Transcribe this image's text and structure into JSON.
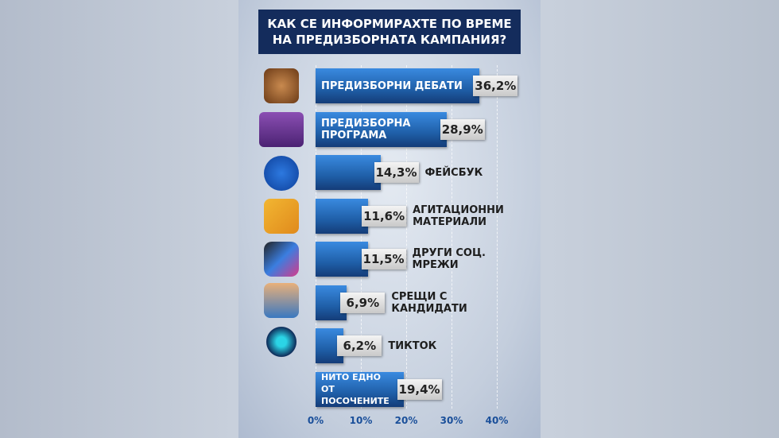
{
  "chart_data": {
    "type": "bar",
    "orientation": "horizontal",
    "title": "КАК СЕ ИНФОРМИРАХТЕ ПО ВРЕМЕ НА ПРЕДИЗБОРНАТА КАМПАНИЯ?",
    "categories": [
      "ПРЕДИЗБОРНИ ДЕБАТИ",
      "ПРЕДИЗБОРНА ПРОГРАМА",
      "ФЕЙСБУК",
      "АГИТАЦИОННИ МАТЕРИАЛИ",
      "ДРУГИ СОЦ. МРЕЖИ",
      "СРЕЩИ С КАНДИДАТИ",
      "ТИКТОК",
      "НИТО ЕДНО ОТ ПОСОЧЕНИТЕ"
    ],
    "values": [
      36.2,
      28.9,
      14.3,
      11.6,
      11.5,
      6.9,
      6.2,
      19.4
    ],
    "value_labels": [
      "36,2%",
      "28,9%",
      "14,3%",
      "11,6%",
      "11,5%",
      "6,9%",
      "6,2%",
      "19,4%"
    ],
    "color": "#1f5fa8",
    "xlim": [
      0,
      40
    ],
    "xticks": [
      {
        "value": 0,
        "label": "0%"
      },
      {
        "value": 10,
        "label": "10%"
      },
      {
        "value": 20,
        "label": "20%"
      },
      {
        "value": 30,
        "label": "30%"
      },
      {
        "value": 40,
        "label": "40%"
      }
    ],
    "grid": true
  }
}
